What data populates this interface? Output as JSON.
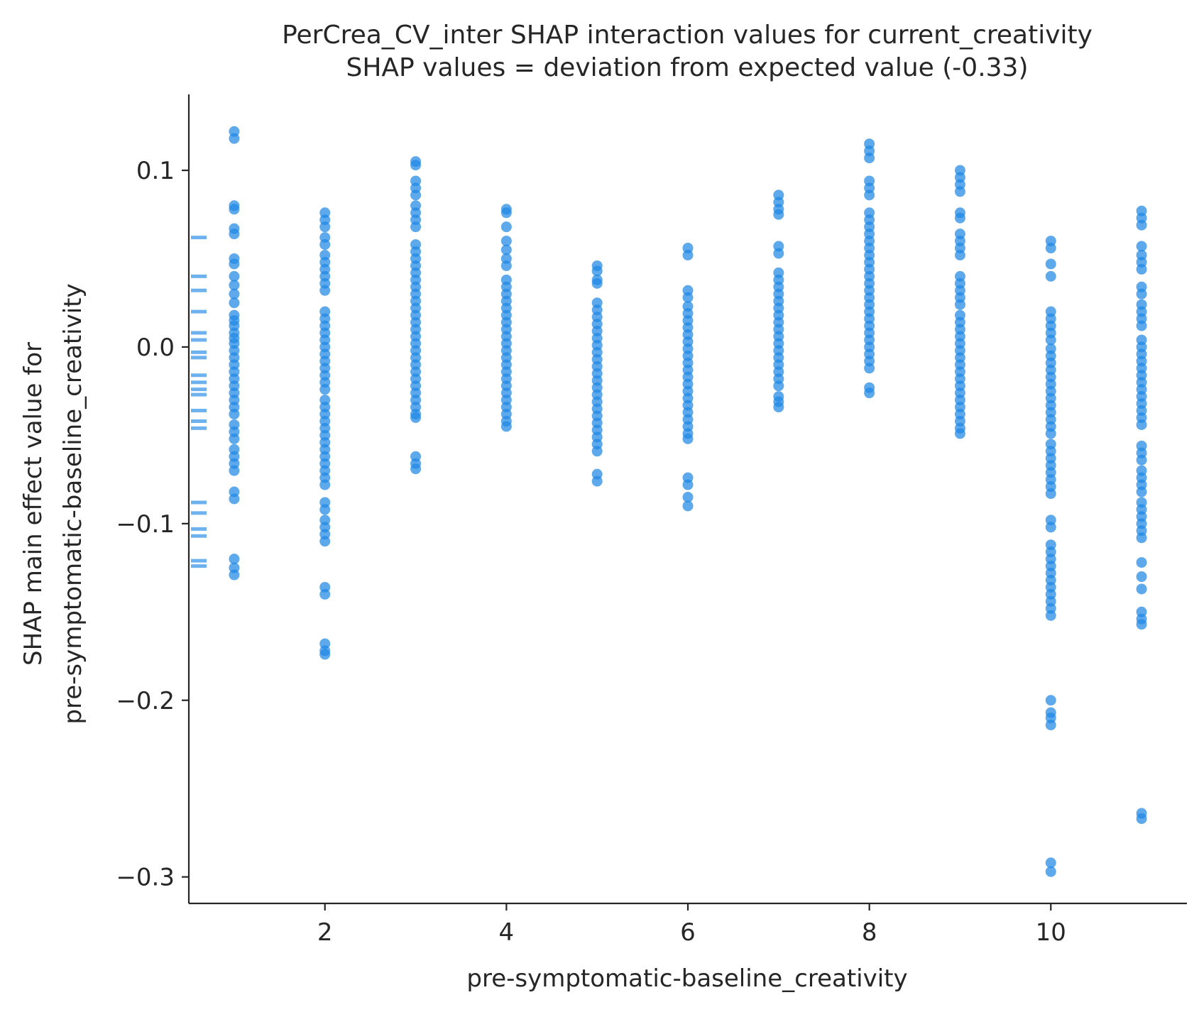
{
  "chart_data": {
    "type": "scatter",
    "title": "PerCrea_CV_inter SHAP interaction values for current_creativity",
    "subtitle": "SHAP values = deviation from expected value (-0.33)",
    "xlabel": "pre-symptomatic-baseline_creativity",
    "ylabel_line1": "SHAP main effect value for",
    "ylabel_line2": "pre-symptomatic-baseline_creativity",
    "xlim": [
      0.5,
      11.5
    ],
    "ylim": [
      -0.315,
      0.143
    ],
    "xticks": [
      2,
      4,
      6,
      8,
      10
    ],
    "xtick_labels": [
      "2",
      "4",
      "6",
      "8",
      "10"
    ],
    "yticks": [
      0.1,
      0.0,
      -0.1,
      -0.2,
      -0.3
    ],
    "ytick_labels": [
      "0.1",
      "0.0",
      "−0.1",
      "−0.2",
      "−0.3"
    ],
    "grid": false,
    "legend": false,
    "marker_color": "#1e88e5",
    "series": [
      {
        "x": 1,
        "y": [
          0.122,
          0.118,
          0.08,
          0.078,
          0.067,
          0.064,
          0.05,
          0.047,
          0.04,
          0.035,
          0.03,
          0.025,
          0.018,
          0.015,
          0.012,
          0.008,
          0.005,
          0.002,
          -0.002,
          -0.006,
          -0.01,
          -0.014,
          -0.018,
          -0.022,
          -0.026,
          -0.03,
          -0.034,
          -0.038,
          -0.044,
          -0.048,
          -0.052,
          -0.058,
          -0.062,
          -0.066,
          -0.07,
          -0.082,
          -0.086,
          -0.12,
          -0.125,
          -0.129
        ]
      },
      {
        "x": 2,
        "y": [
          0.076,
          0.072,
          0.068,
          0.062,
          0.058,
          0.052,
          0.048,
          0.044,
          0.04,
          0.036,
          0.032,
          0.02,
          0.016,
          0.012,
          0.008,
          0.004,
          0.0,
          -0.004,
          -0.008,
          -0.012,
          -0.016,
          -0.02,
          -0.024,
          -0.03,
          -0.034,
          -0.038,
          -0.042,
          -0.046,
          -0.05,
          -0.054,
          -0.058,
          -0.062,
          -0.066,
          -0.07,
          -0.074,
          -0.078,
          -0.088,
          -0.092,
          -0.098,
          -0.102,
          -0.106,
          -0.11,
          -0.136,
          -0.14,
          -0.168,
          -0.172,
          -0.174
        ]
      },
      {
        "x": 3,
        "y": [
          0.105,
          0.103,
          0.094,
          0.09,
          0.086,
          0.08,
          0.076,
          0.072,
          0.068,
          0.058,
          0.054,
          0.05,
          0.046,
          0.042,
          0.038,
          0.034,
          0.03,
          0.026,
          0.022,
          0.018,
          0.014,
          0.01,
          0.006,
          0.002,
          -0.002,
          -0.006,
          -0.01,
          -0.014,
          -0.018,
          -0.022,
          -0.026,
          -0.03,
          -0.034,
          -0.038,
          -0.04,
          -0.062,
          -0.066,
          -0.069
        ]
      },
      {
        "x": 4,
        "y": [
          0.078,
          0.076,
          0.068,
          0.06,
          0.055,
          0.05,
          0.046,
          0.038,
          0.034,
          0.03,
          0.026,
          0.022,
          0.018,
          0.014,
          0.01,
          0.006,
          0.002,
          -0.002,
          -0.006,
          -0.01,
          -0.014,
          -0.018,
          -0.022,
          -0.026,
          -0.03,
          -0.034,
          -0.038,
          -0.042,
          -0.045
        ]
      },
      {
        "x": 5,
        "y": [
          0.046,
          0.043,
          0.038,
          0.036,
          0.025,
          0.021,
          0.017,
          0.013,
          0.009,
          0.005,
          0.001,
          -0.003,
          -0.007,
          -0.011,
          -0.015,
          -0.019,
          -0.023,
          -0.027,
          -0.031,
          -0.035,
          -0.039,
          -0.043,
          -0.047,
          -0.051,
          -0.055,
          -0.059,
          -0.072,
          -0.076
        ]
      },
      {
        "x": 6,
        "y": [
          0.056,
          0.052,
          0.032,
          0.028,
          0.023,
          0.019,
          0.015,
          0.011,
          0.007,
          0.003,
          -0.001,
          -0.005,
          -0.009,
          -0.013,
          -0.017,
          -0.021,
          -0.025,
          -0.029,
          -0.033,
          -0.037,
          -0.041,
          -0.045,
          -0.049,
          -0.052,
          -0.074,
          -0.078,
          -0.085,
          -0.09
        ]
      },
      {
        "x": 7,
        "y": [
          0.086,
          0.082,
          0.078,
          0.075,
          0.057,
          0.053,
          0.042,
          0.038,
          0.034,
          0.03,
          0.026,
          0.022,
          0.018,
          0.014,
          0.01,
          0.006,
          0.002,
          -0.002,
          -0.006,
          -0.01,
          -0.014,
          -0.018,
          -0.022,
          -0.028,
          -0.031,
          -0.034
        ]
      },
      {
        "x": 8,
        "y": [
          0.115,
          0.111,
          0.107,
          0.094,
          0.09,
          0.086,
          0.076,
          0.072,
          0.068,
          0.064,
          0.06,
          0.056,
          0.052,
          0.048,
          0.044,
          0.04,
          0.036,
          0.032,
          0.028,
          0.024,
          0.02,
          0.016,
          0.012,
          0.008,
          0.004,
          0.0,
          -0.004,
          -0.008,
          -0.012,
          -0.023,
          -0.026
        ]
      },
      {
        "x": 9,
        "y": [
          0.1,
          0.096,
          0.092,
          0.088,
          0.076,
          0.073,
          0.064,
          0.06,
          0.056,
          0.052,
          0.04,
          0.036,
          0.032,
          0.028,
          0.024,
          0.018,
          0.014,
          0.01,
          0.006,
          0.002,
          -0.002,
          -0.006,
          -0.01,
          -0.014,
          -0.018,
          -0.022,
          -0.026,
          -0.03,
          -0.034,
          -0.038,
          -0.042,
          -0.046,
          -0.049
        ]
      },
      {
        "x": 10,
        "y": [
          0.06,
          0.056,
          0.047,
          0.04,
          0.02,
          0.016,
          0.012,
          0.008,
          0.004,
          -0.001,
          -0.005,
          -0.009,
          -0.013,
          -0.017,
          -0.021,
          -0.025,
          -0.029,
          -0.033,
          -0.037,
          -0.041,
          -0.045,
          -0.049,
          -0.055,
          -0.059,
          -0.063,
          -0.067,
          -0.071,
          -0.075,
          -0.079,
          -0.083,
          -0.098,
          -0.102,
          -0.112,
          -0.116,
          -0.12,
          -0.124,
          -0.128,
          -0.132,
          -0.136,
          -0.14,
          -0.144,
          -0.148,
          -0.152,
          -0.2,
          -0.207,
          -0.21,
          -0.214,
          -0.292,
          -0.297
        ]
      },
      {
        "x": 11,
        "y": [
          0.077,
          0.073,
          0.069,
          0.057,
          0.052,
          0.048,
          0.044,
          0.034,
          0.03,
          0.024,
          0.02,
          0.016,
          0.012,
          0.004,
          0.0,
          -0.004,
          -0.008,
          -0.012,
          -0.016,
          -0.02,
          -0.024,
          -0.028,
          -0.032,
          -0.036,
          -0.04,
          -0.044,
          -0.056,
          -0.06,
          -0.064,
          -0.07,
          -0.074,
          -0.078,
          -0.082,
          -0.088,
          -0.092,
          -0.096,
          -0.1,
          -0.104,
          -0.108,
          -0.122,
          -0.13,
          -0.137,
          -0.15,
          -0.154,
          -0.157,
          -0.264,
          -0.267
        ]
      }
    ],
    "y_rug": [
      0.062,
      0.04,
      0.032,
      0.02,
      0.008,
      0.004,
      -0.003,
      -0.006,
      -0.016,
      -0.02,
      -0.024,
      -0.027,
      -0.036,
      -0.042,
      -0.046,
      -0.088,
      -0.094,
      -0.103,
      -0.107,
      -0.121,
      -0.124
    ]
  }
}
